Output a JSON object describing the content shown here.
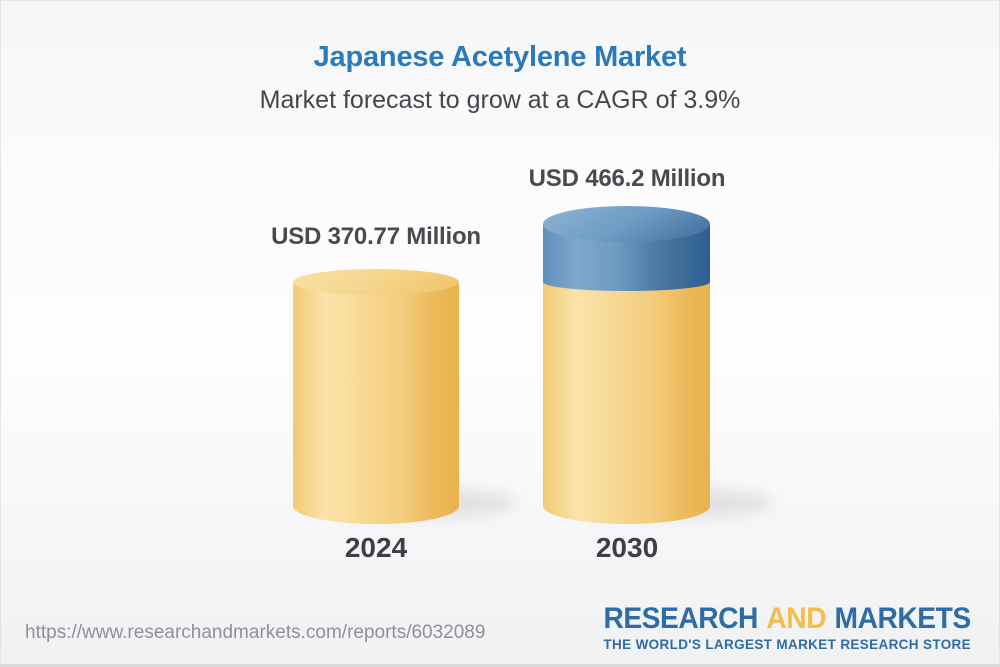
{
  "header": {
    "title": "Japanese Acetylene Market",
    "subtitle": "Market forecast to grow at a CAGR of 3.9%"
  },
  "chart_data": {
    "type": "bar",
    "subtype": "3d-cylinder-comparison",
    "categories": [
      "2024",
      "2030"
    ],
    "values": [
      370.77,
      466.2
    ],
    "value_labels": [
      "USD 370.77 Million",
      "USD 466.2 Million"
    ],
    "unit": "USD Million",
    "cagr_pct": 3.9,
    "ylim": [
      0,
      466.2
    ],
    "grid": false,
    "legend": false,
    "series": [
      {
        "name": "2024 base value",
        "values": [
          370.77,
          370.77
        ],
        "color": "#f3cd7d"
      },
      {
        "name": "Growth 2024-2030",
        "values": [
          0,
          95.43
        ],
        "color": "#4a78a6"
      }
    ],
    "colors": {
      "base_cylinder": "#f3cd7d",
      "growth_segment": "#4a78a6",
      "title_accent": "#2b7ab9",
      "label_text": "#494a50"
    }
  },
  "footer": {
    "url": "https://www.researchandmarkets.com/reports/6032089",
    "logo": {
      "word1": "RESEARCH",
      "word2": "AND",
      "word3": "MARKETS",
      "tagline": "THE WORLD'S LARGEST MARKET RESEARCH STORE"
    }
  }
}
